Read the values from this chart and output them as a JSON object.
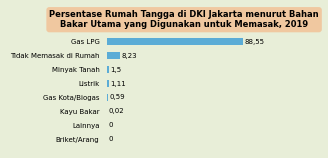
{
  "title": "Persentase Rumah Tangga di DKI Jakarta menurut Bahan\nBakar Utama yang Digunakan untuk Memasak, 2019",
  "categories": [
    "Gas LPG",
    "Tidak Memasak di Rumah",
    "Minyak Tanah",
    "Listrik",
    "Gas Kota/Biogas",
    "Kayu Bakar",
    "Lainnya",
    "Briket/Arang"
  ],
  "values": [
    88.55,
    8.23,
    1.5,
    1.11,
    0.59,
    0.02,
    0,
    0
  ],
  "labels": [
    "88,55",
    "8,23",
    "1,5",
    "1,11",
    "0,59",
    "0,02",
    "0",
    "0"
  ],
  "bar_color": "#5bacd6",
  "bg_color": "#e8eed8",
  "title_bg": "#f0c8a0",
  "title_fontsize": 6.0,
  "label_fontsize": 5.0,
  "cat_fontsize": 5.0,
  "xlim": [
    0,
    100
  ]
}
